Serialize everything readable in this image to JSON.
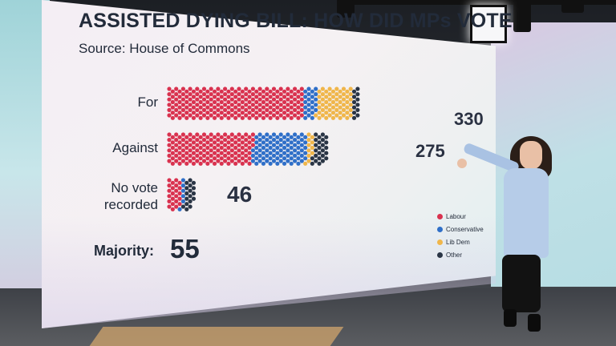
{
  "chart_data": {
    "type": "bar",
    "title": "ASSISTED DYING BILL: HOW DID MPs VOTE",
    "subtitle": "Source: House of Commons",
    "categories": [
      "For",
      "Against",
      "No vote recorded"
    ],
    "totals": [
      330,
      275,
      46
    ],
    "series": [
      {
        "name": "Labour",
        "color": "#d9324f",
        "values": [
          234,
          147,
          23
        ]
      },
      {
        "name": "Conservative",
        "color": "#2f6fc8",
        "values": [
          23,
          92,
          6
        ]
      },
      {
        "name": "Lib Dem",
        "color": "#f0b64a",
        "values": [
          61,
          11,
          0
        ]
      },
      {
        "name": "Other",
        "color": "#2a3545",
        "values": [
          12,
          25,
          17
        ]
      }
    ],
    "majority_label": "Majority:",
    "majority_value": "55",
    "legend_position": "bottom-right"
  }
}
